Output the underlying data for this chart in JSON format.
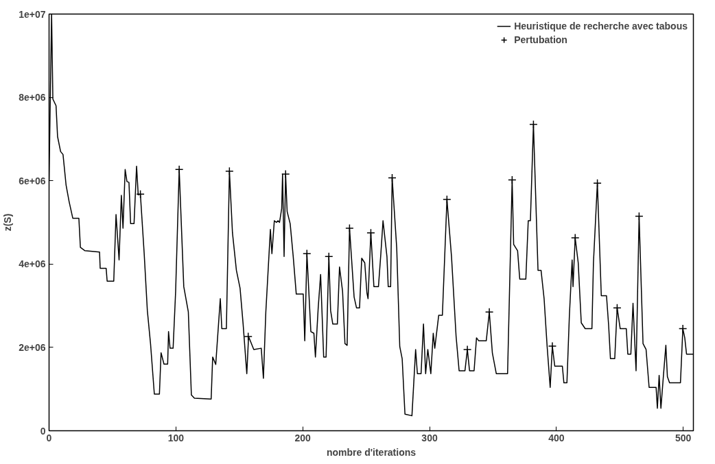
{
  "chart_data": {
    "type": "line",
    "xlabel": "nombre d'iterations",
    "ylabel": "z(S)",
    "xlim": [
      0,
      508
    ],
    "ylim": [
      0,
      10000000
    ],
    "xticks": [
      0,
      100,
      200,
      300,
      400,
      500
    ],
    "yticks": [
      0,
      {
        "value": 2000000,
        "label": "2e+06"
      },
      {
        "value": 4000000,
        "label": "4e+06"
      },
      {
        "value": 6000000,
        "label": "6e+06"
      },
      {
        "value": 8000000,
        "label": "8e+06"
      },
      {
        "value": 10000000,
        "label": "1e+07"
      }
    ],
    "grid": false,
    "legend": "top right",
    "series": [
      {
        "name": "Heuristique de recherche avec tabous",
        "color": "#000000",
        "marker": "none",
        "line_style": "solid",
        "x": [
          0,
          2,
          3,
          5.5,
          6.7,
          9.1,
          11,
          13.4,
          15.8,
          18.7,
          23.5,
          24.7,
          28.3,
          39.8,
          40.3,
          45,
          45.8,
          51,
          52.8,
          55.2,
          57,
          58.3,
          60,
          61.4,
          63,
          64.3,
          67,
          69,
          70.3,
          72,
          75,
          77.5,
          80,
          83,
          87,
          88.3,
          90.6,
          93.5,
          94.2,
          95.4,
          97.8,
          99.8,
          102.6,
          106.2,
          109.8,
          112.2,
          114.6,
          127.8,
          129,
          131.4,
          135,
          136.2,
          139.8,
          142.2,
          144.6,
          147.7,
          150.6,
          153,
          155.9,
          157.3,
          161.4,
          167.3,
          169,
          170.9,
          174.5,
          175.7,
          177.6,
          179.3,
          180.5,
          181.7,
          183.4,
          184.1,
          185.3,
          186.5,
          187.7,
          190.1,
          192.5,
          194.9,
          200.4,
          201.6,
          203.3,
          206.4,
          208.8,
          210,
          212.2,
          214.1,
          216.5,
          218.4,
          220.6,
          222,
          223.7,
          227.3,
          229,
          231.4,
          233.3,
          235,
          236.9,
          240.5,
          242.4,
          244.8,
          246.5,
          248.9,
          250.6,
          251.5,
          253.7,
          256.1,
          259.7,
          261.6,
          263.3,
          266.4,
          267.4,
          269.3,
          270.5,
          274.1,
          276.5,
          278.4,
          280.6,
          286.1,
          289,
          290.4,
          293.3,
          295.2,
          296.9,
          298.6,
          301,
          302.9,
          304.1,
          307.2,
          310.1,
          313.7,
          317.3,
          320.9,
          323.3,
          327.9,
          329.8,
          331.5,
          335.1,
          337,
          338.7,
          344.7,
          347.1,
          349.5,
          352.6,
          361.5,
          365.1,
          366.3,
          369.4,
          371.1,
          375.9,
          377.8,
          379.5,
          381.9,
          383.6,
          385.5,
          387.9,
          390.3,
          392.7,
          395.1,
          396.8,
          398.7,
          404.7,
          405.9,
          408.3,
          410.2,
          412.4,
          413.1,
          414.8,
          417.2,
          419.6,
          422.7,
          428,
          429.2,
          432.3,
          435.4,
          439.5,
          441.2,
          442.6,
          446,
          447.9,
          450.3,
          455.1,
          456.3,
          458.7,
          460.4,
          462.8,
          465.2,
          468.3,
          470.7,
          473.1,
          478.6,
          479.6,
          481,
          482.4,
          484.4,
          486.3,
          487.5,
          489.2,
          497.8,
          499.7,
          501.2,
          502.6,
          508
        ],
        "values": [
          6000000,
          10000000,
          7960000,
          7800000,
          7060000,
          6700000,
          6630000,
          5900000,
          5500000,
          5100000,
          5100000,
          4400000,
          4320000,
          4290000,
          3900000,
          3900000,
          3590000,
          3590000,
          5190000,
          4100000,
          5650000,
          4860000,
          6270000,
          5980000,
          5960000,
          4970000,
          4970000,
          6350000,
          5660000,
          5680000,
          4250000,
          2880000,
          2090000,
          880000,
          880000,
          1870000,
          1600000,
          1600000,
          2380000,
          1980000,
          1980000,
          3350000,
          6270000,
          3460000,
          2850000,
          860000,
          780000,
          760000,
          1770000,
          1590000,
          3170000,
          2450000,
          2450000,
          6230000,
          4750000,
          3850000,
          3420000,
          2560000,
          1370000,
          2260000,
          1950000,
          1980000,
          1260000,
          2850000,
          4830000,
          4250000,
          5040000,
          5000000,
          5040000,
          5000000,
          5330000,
          6160000,
          4180000,
          6160000,
          5260000,
          4970000,
          4180000,
          3280000,
          3280000,
          2160000,
          4250000,
          2380000,
          2340000,
          1770000,
          2950000,
          3750000,
          1770000,
          1770000,
          4180000,
          2880000,
          2560000,
          2560000,
          3930000,
          3350000,
          2090000,
          2050000,
          4860000,
          3210000,
          2950000,
          2950000,
          4140000,
          4030000,
          3310000,
          3170000,
          4750000,
          3460000,
          3460000,
          4250000,
          5040000,
          4180000,
          3460000,
          3460000,
          6070000,
          4390000,
          2020000,
          1730000,
          400000,
          360000,
          1950000,
          1370000,
          1370000,
          2560000,
          1370000,
          1950000,
          1370000,
          2340000,
          1980000,
          2770000,
          2770000,
          5550000,
          4180000,
          2270000,
          1440000,
          1440000,
          1950000,
          1440000,
          1440000,
          2230000,
          2160000,
          2160000,
          2850000,
          1870000,
          1370000,
          1370000,
          6020000,
          4470000,
          4320000,
          3640000,
          3640000,
          5040000,
          5040000,
          7350000,
          5690000,
          3850000,
          3850000,
          3170000,
          2020000,
          1040000,
          2030000,
          1550000,
          1550000,
          1150000,
          1150000,
          2740000,
          4100000,
          3460000,
          4630000,
          4030000,
          2590000,
          2450000,
          2450000,
          4030000,
          5940000,
          3240000,
          3240000,
          2520000,
          1730000,
          1730000,
          2950000,
          2450000,
          2450000,
          1840000,
          1840000,
          3060000,
          1440000,
          5150000,
          2090000,
          1950000,
          1040000,
          1040000,
          540000,
          1330000,
          540000,
          1330000,
          2050000,
          1300000,
          1150000,
          1150000,
          2450000,
          2230000,
          1840000,
          1840000
        ]
      },
      {
        "name": "Pertubation",
        "type": "scatter",
        "color": "#000000",
        "marker": "cross",
        "x": [
          72,
          102.6,
          142.2,
          157,
          186.5,
          203.3,
          220.6,
          236.9,
          253.7,
          270.5,
          313.7,
          329.8,
          347.1,
          365.1,
          381.9,
          396.8,
          414.8,
          432.3,
          447.9,
          465.2,
          499.7
        ],
        "values": [
          5680000,
          6270000,
          6230000,
          2260000,
          6160000,
          4250000,
          4180000,
          4860000,
          4750000,
          6070000,
          5550000,
          1950000,
          2850000,
          6020000,
          7350000,
          2030000,
          4630000,
          5940000,
          2950000,
          5150000,
          2450000
        ]
      }
    ]
  }
}
